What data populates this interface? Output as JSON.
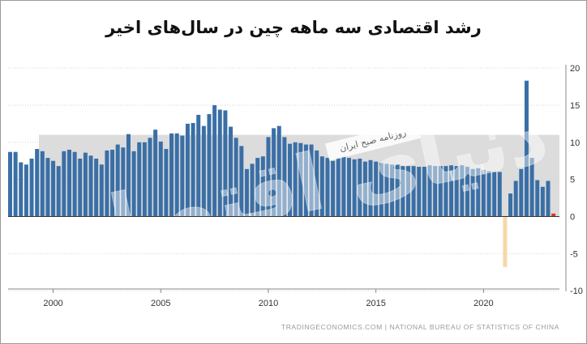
{
  "title": "رشد اقتصادی سه ماهه چین در سال‌های اخیر",
  "source": "TRADINGECONOMICS.COM  |  NATIONAL BUREAU OF STATISTICS OF CHINA",
  "watermark": {
    "label": "روزنامه صبح ایران",
    "text": "دنیای اقتصاد"
  },
  "colors": {
    "bar": "#3a6fa6",
    "negative_bar": "#f4d9a8",
    "band": "#dcdcdc",
    "last_bar": "#d9342b"
  },
  "chart_data": {
    "type": "bar",
    "title": "رشد اقتصادی سه ماهه چین در سال‌های اخیر",
    "xlabel": "",
    "ylabel": "",
    "x_start": "1998 Q1",
    "x_ticks": [
      "2000",
      "2005",
      "2010",
      "2015",
      "2020"
    ],
    "y_ticks": [
      "20",
      "15",
      "10",
      "5",
      "0",
      "-5",
      "-10"
    ],
    "ylim": [
      -10,
      20
    ],
    "band": [
      0,
      11
    ],
    "values": [
      8.7,
      8.7,
      7.3,
      7.0,
      7.8,
      9.1,
      8.8,
      7.9,
      7.5,
      6.8,
      8.8,
      9.0,
      8.7,
      7.8,
      8.6,
      8.2,
      7.8,
      7.0,
      8.9,
      9.0,
      9.7,
      9.3,
      11.1,
      8.8,
      10.0,
      10.0,
      10.6,
      11.7,
      10.1,
      9.1,
      11.2,
      11.2,
      10.9,
      12.5,
      12.6,
      13.7,
      12.2,
      13.8,
      15.0,
      14.4,
      14.3,
      12.1,
      10.6,
      9.5,
      6.4,
      7.1,
      7.9,
      8.1,
      10.7,
      11.9,
      12.2,
      10.7,
      9.8,
      10.0,
      9.9,
      9.7,
      9.7,
      8.9,
      8.1,
      7.9,
      7.5,
      7.9,
      8.1,
      7.9,
      7.7,
      7.8,
      7.4,
      7.6,
      7.4,
      7.2,
      7.1,
      7.0,
      7.0,
      6.8,
      6.8,
      6.8,
      6.7,
      6.7,
      6.9,
      6.8,
      6.8,
      6.8,
      6.9,
      6.8,
      6.9,
      6.7,
      6.4,
      6.5,
      6.3,
      6.1,
      6.0,
      6.0,
      -6.8,
      3.1,
      4.8,
      6.4,
      18.3,
      7.9,
      4.9,
      4.0,
      4.8,
      0.4
    ],
    "highlights": {
      "negative_index": 92,
      "last_index": 101
    }
  }
}
